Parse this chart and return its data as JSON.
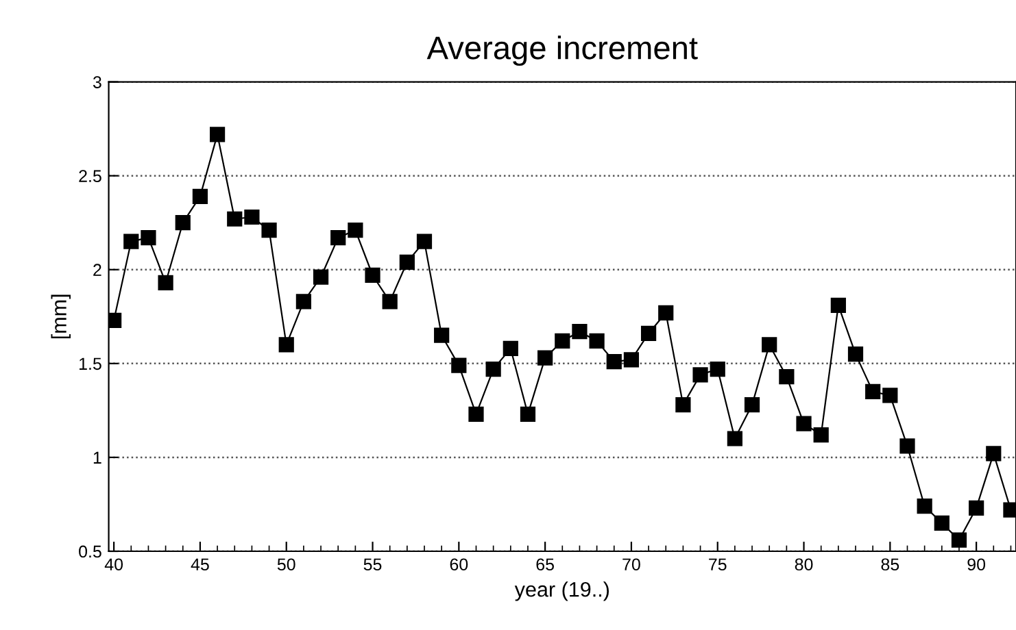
{
  "chart_data": {
    "type": "line",
    "title": "Average increment",
    "xlabel": "year (19..)",
    "ylabel": "[mm]",
    "x": [
      40,
      41,
      42,
      43,
      44,
      45,
      46,
      47,
      48,
      49,
      50,
      51,
      52,
      53,
      54,
      55,
      56,
      57,
      58,
      59,
      60,
      61,
      62,
      63,
      64,
      65,
      66,
      67,
      68,
      69,
      70,
      71,
      72,
      73,
      74,
      75,
      76,
      77,
      78,
      79,
      80,
      81,
      82,
      83,
      84,
      85,
      86,
      87,
      88,
      89,
      90,
      91,
      92
    ],
    "series": [
      {
        "color": "#000000",
        "values": [
          1.73,
          2.15,
          2.17,
          1.93,
          2.25,
          2.39,
          2.72,
          2.27,
          2.28,
          2.21,
          1.6,
          1.83,
          1.96,
          2.17,
          2.21,
          1.97,
          1.83,
          2.04,
          2.15,
          1.65,
          1.49,
          1.23,
          1.47,
          1.58,
          1.23,
          1.53,
          1.62,
          1.67,
          1.62,
          1.51,
          1.52,
          1.66,
          1.77,
          1.28,
          1.44,
          1.47,
          1.1,
          1.28,
          1.6,
          1.43,
          1.18,
          1.12,
          1.81,
          1.55,
          1.35,
          1.33,
          1.06,
          0.74,
          0.65,
          0.56,
          0.73,
          1.02,
          0.72
        ]
      }
    ],
    "xlim": [
      39.7,
      92.3
    ],
    "xticks": [
      40,
      45,
      50,
      55,
      60,
      65,
      70,
      75,
      80,
      85,
      90
    ],
    "ylim": [
      0.5,
      3
    ],
    "yticks": [
      0.5,
      1,
      1.5,
      2,
      2.5,
      3
    ],
    "grid": "y",
    "marker": "square",
    "line_style": "solid"
  }
}
